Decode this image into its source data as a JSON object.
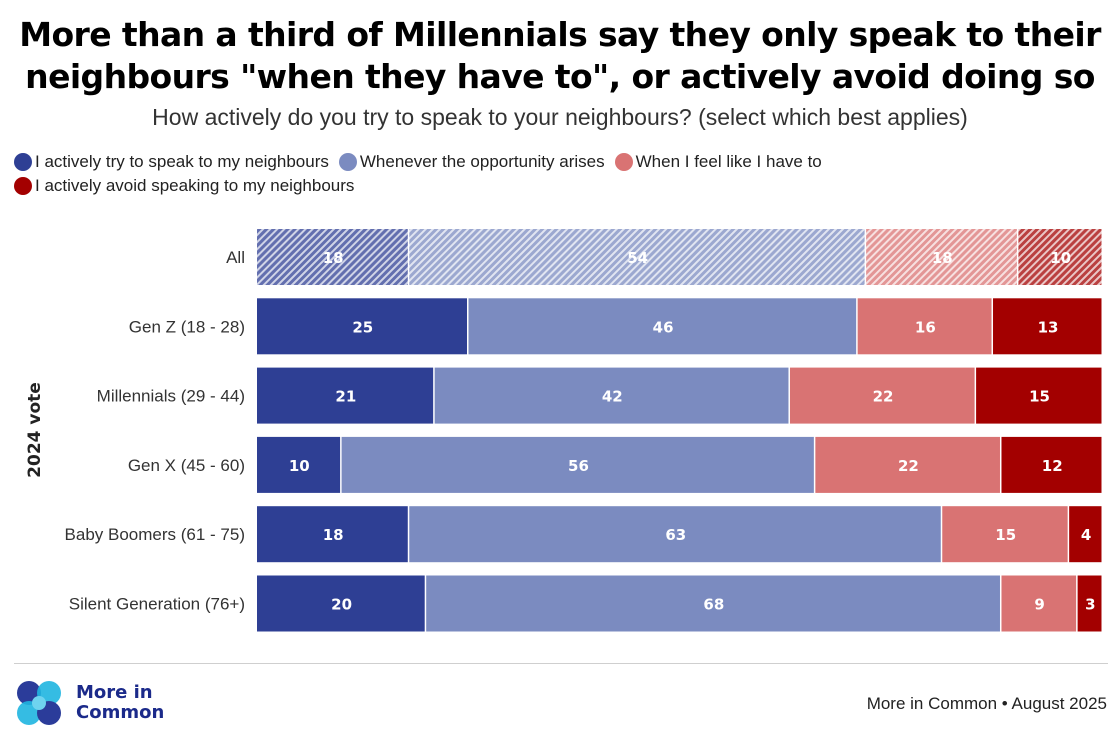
{
  "title_line1": "More than a third of Millennials say they only speak to their",
  "title_line2": "neighbours \"when they have to\", or actively avoid doing so",
  "subtitle": "How actively do you try to speak to your neighbours? (select which best applies)",
  "legend": [
    {
      "label": "I actively try to speak to my neighbours",
      "color": "#2e3f94"
    },
    {
      "label": "Whenever the opportunity arises",
      "color": "#7b8bc0"
    },
    {
      "label": "When I feel like I have to",
      "color": "#d97373"
    },
    {
      "label": "I actively avoid speaking to my neighbours",
      "color": "#a30000"
    }
  ],
  "chart_data": {
    "type": "bar",
    "orientation": "horizontal",
    "stacked": true,
    "y_axis_title": "2024 vote",
    "categories": [
      "All",
      "Gen Z (18 - 28)",
      "Millennials (29 - 44)",
      "Gen X (45 - 60)",
      "Baby Boomers (61 - 75)",
      "Silent Generation (76+)"
    ],
    "hatched_categories": [
      "All"
    ],
    "series": [
      {
        "name": "I actively try to speak to my neighbours",
        "color": "#2e3f94",
        "values": [
          18,
          25,
          21,
          10,
          18,
          20
        ]
      },
      {
        "name": "Whenever the opportunity arises",
        "color": "#7b8bc0",
        "values": [
          54,
          46,
          42,
          56,
          63,
          68
        ]
      },
      {
        "name": "When I feel like I have to",
        "color": "#d97373",
        "values": [
          18,
          16,
          22,
          22,
          15,
          9
        ]
      },
      {
        "name": "I actively avoid speaking to my neighbours",
        "color": "#a30000",
        "values": [
          10,
          13,
          15,
          12,
          4,
          3
        ]
      }
    ]
  },
  "logo_line1": "More in",
  "logo_line2": "Common",
  "source": "More in Common • August 2025"
}
